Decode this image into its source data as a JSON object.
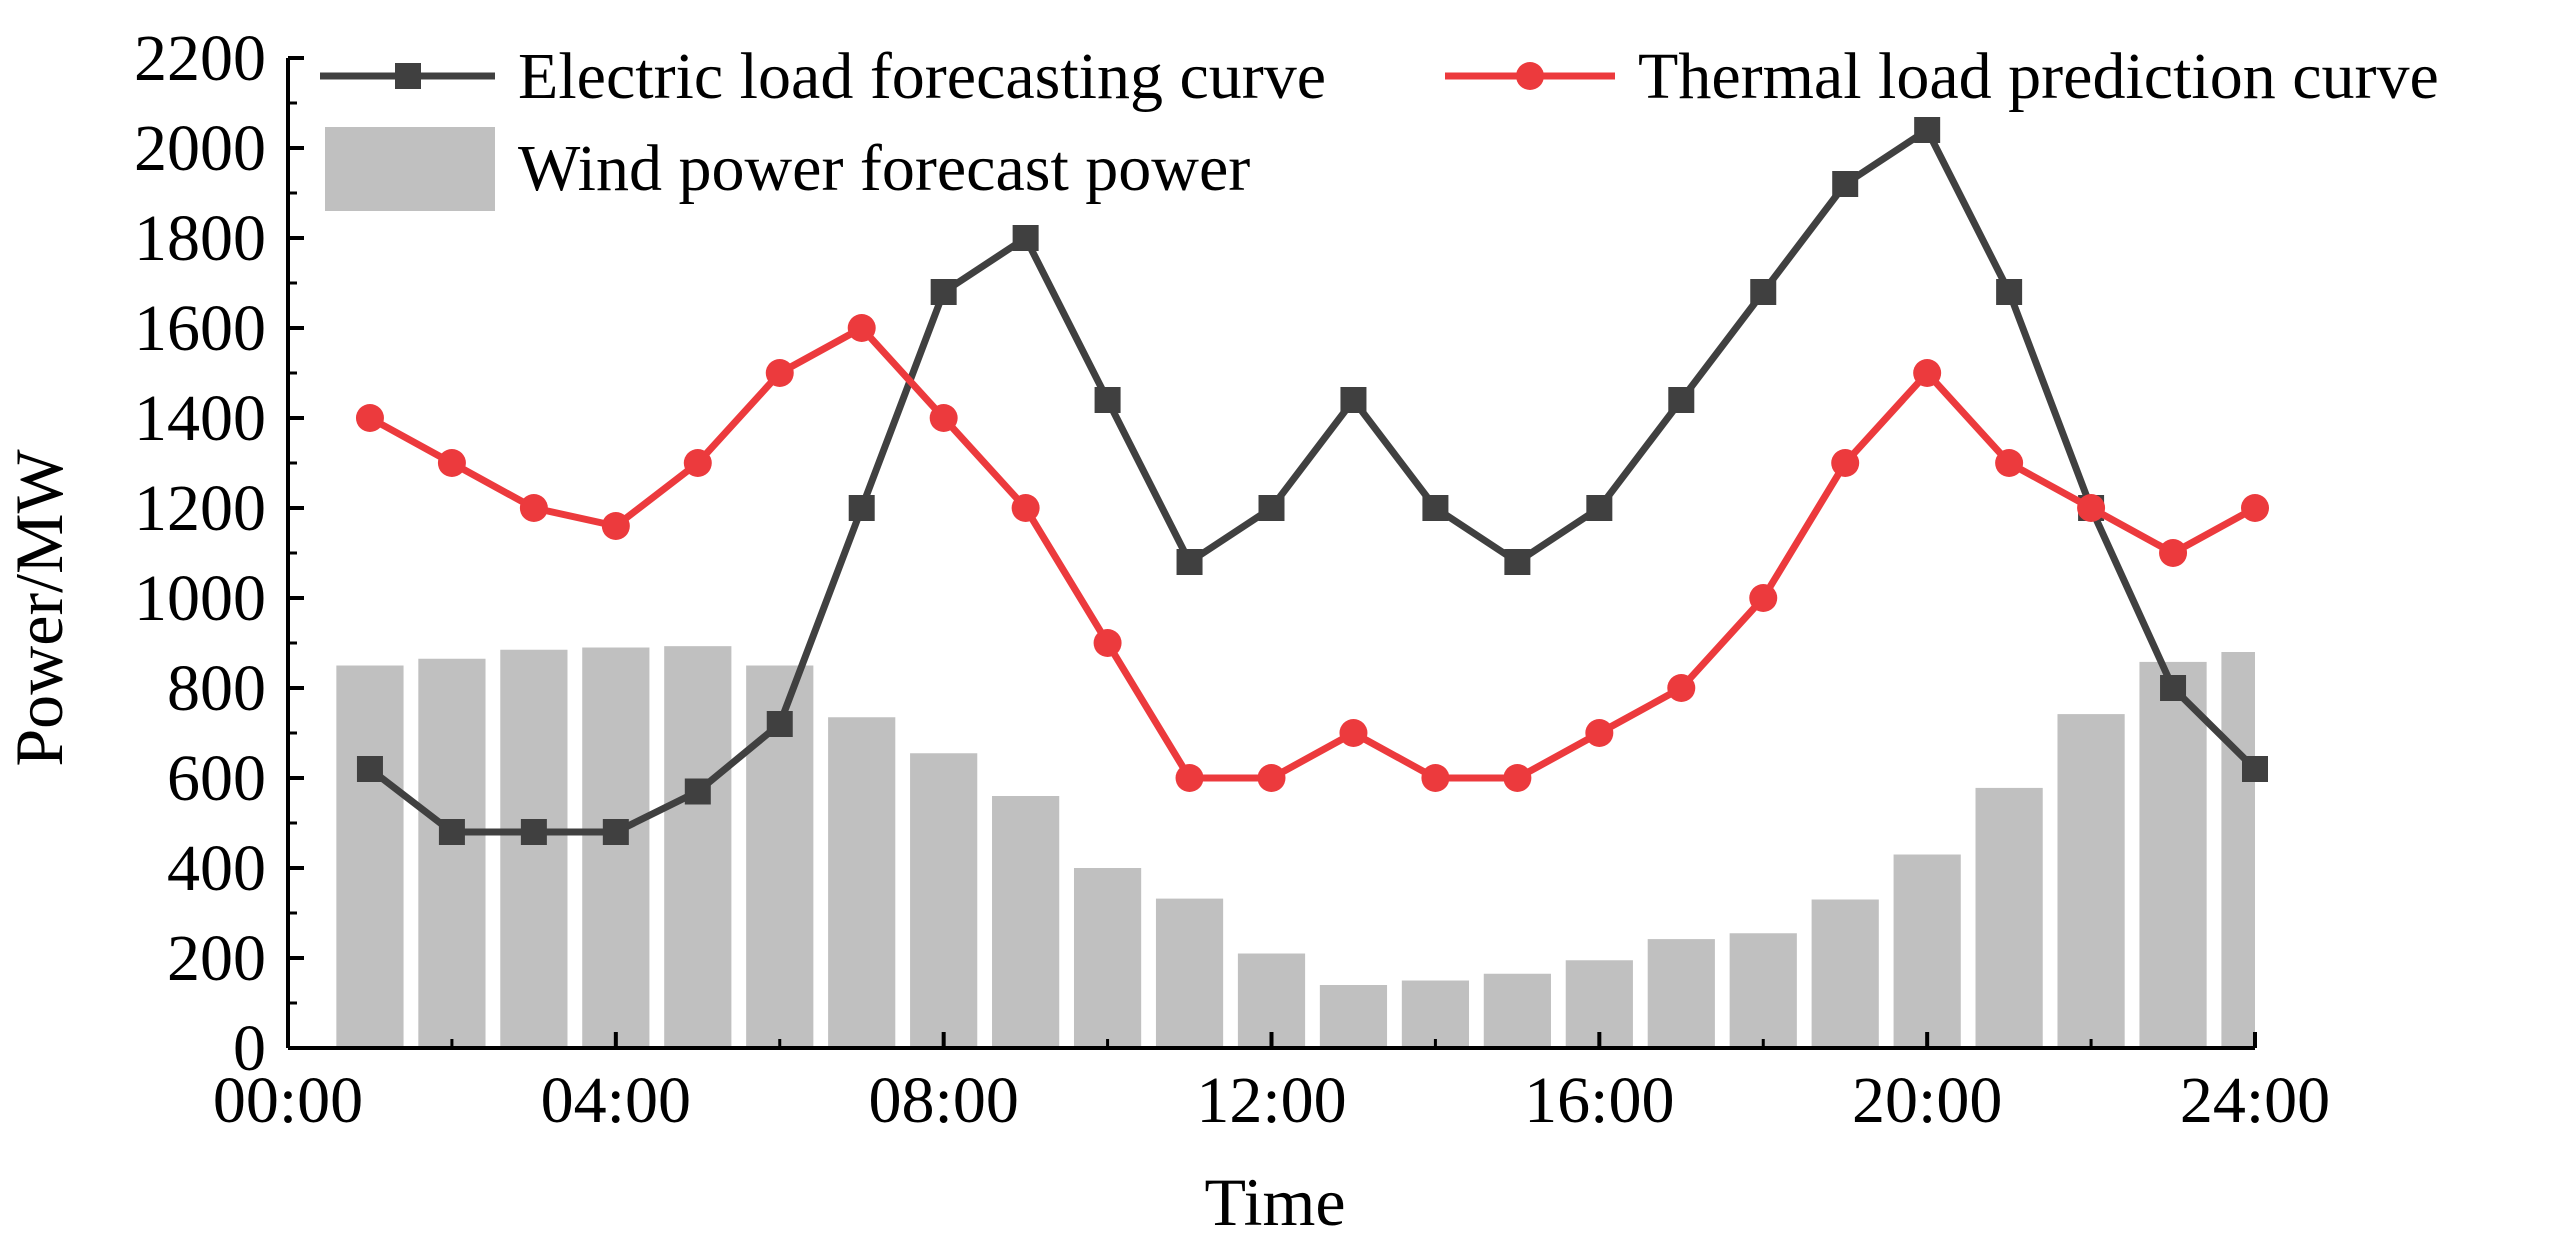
{
  "chart_data": {
    "type": "bar+line",
    "title": "",
    "xlabel": "Time",
    "ylabel": "Power/MW",
    "xlim": [
      0,
      24
    ],
    "ylim": [
      0,
      2200
    ],
    "x_ticks": [
      0,
      4,
      8,
      12,
      16,
      20,
      24
    ],
    "x_tick_labels": [
      "00:00",
      "04:00",
      "08:00",
      "12:00",
      "16:00",
      "20:00",
      "24:00"
    ],
    "y_ticks": [
      0,
      200,
      400,
      600,
      800,
      1000,
      1200,
      1400,
      1600,
      1800,
      2000,
      2200
    ],
    "y_tick_labels": [
      "0",
      "200",
      "400",
      "600",
      "800",
      "1000",
      "1200",
      "1400",
      "1600",
      "1800",
      "2000",
      "2200"
    ],
    "x": [
      1,
      2,
      3,
      4,
      5,
      6,
      7,
      8,
      9,
      10,
      11,
      12,
      13,
      14,
      15,
      16,
      17,
      18,
      19,
      20,
      21,
      22,
      23,
      24
    ],
    "series": [
      {
        "name": "Wind power forecast power",
        "kind": "bar",
        "color": "#c0c0c0",
        "values": [
          850,
          865,
          885,
          890,
          893,
          850,
          735,
          655,
          560,
          400,
          332,
          210,
          140,
          150,
          165,
          195,
          242,
          255,
          330,
          430,
          578,
          742,
          858,
          880
        ]
      },
      {
        "name": "Electric load forecasting curve",
        "kind": "line",
        "marker": "square",
        "color": "#404040",
        "values": [
          620,
          480,
          480,
          480,
          570,
          720,
          1200,
          1680,
          1800,
          1440,
          1080,
          1200,
          1440,
          1200,
          1080,
          1200,
          1440,
          1680,
          1920,
          2040,
          1680,
          1200,
          800,
          620
        ]
      },
      {
        "name": "Thermal load prediction curve",
        "kind": "line",
        "marker": "circle",
        "color": "#ec3a3d",
        "values": [
          1400,
          1300,
          1200,
          1160,
          1300,
          1500,
          1600,
          1400,
          1200,
          900,
          600,
          600,
          700,
          600,
          600,
          700,
          800,
          1000,
          1300,
          1500,
          1300,
          1200,
          1100,
          1200
        ]
      }
    ],
    "legend": {
      "placement": "top",
      "entries": [
        "Electric load forecasting curve",
        "Thermal load prediction curve",
        "Wind power forecast power"
      ]
    },
    "grid": false
  }
}
